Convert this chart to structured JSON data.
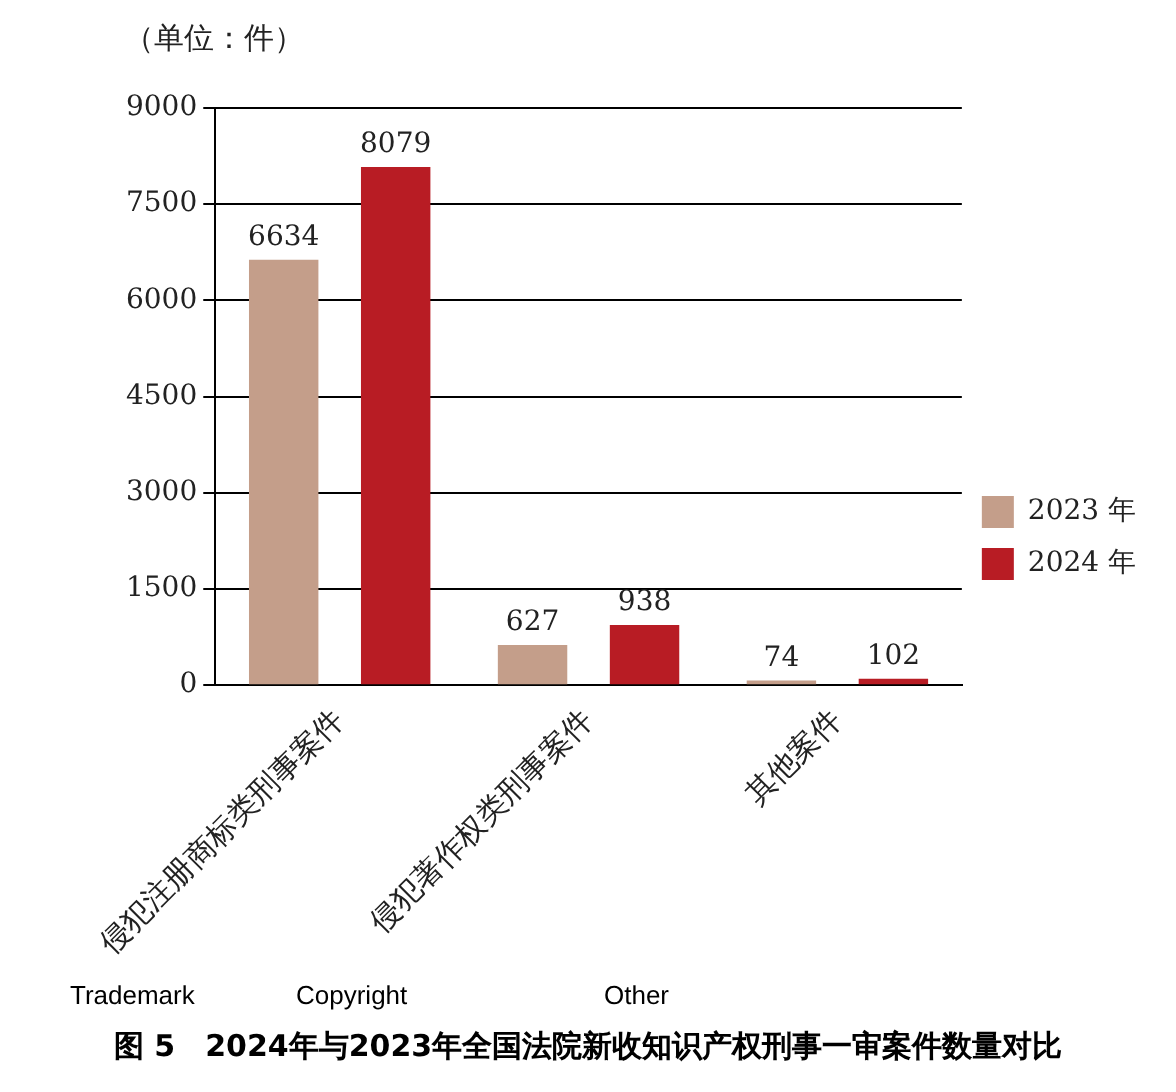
{
  "chart_data": {
    "type": "bar",
    "title": "图 5　2024年与2023年全国法院新收知识产权刑事一审案件数量对比",
    "ylabel": "（单位：件）",
    "categories": [
      "侵犯注册商标类刑事案件",
      "侵犯著作权类刑事案件",
      "其他案件"
    ],
    "series": [
      {
        "name": "2023 年",
        "color": "#c49e8a",
        "values": [
          6634,
          627,
          74
        ]
      },
      {
        "name": "2024 年",
        "color": "#b81c24",
        "values": [
          8079,
          938,
          102
        ]
      }
    ],
    "ylim": [
      0,
      9000
    ],
    "yticks": [
      0,
      1500,
      3000,
      4500,
      6000,
      7500,
      9000
    ],
    "grid": "y",
    "legend": "right",
    "data_labels": true,
    "annotations": [
      "Trademark",
      "Copyright",
      "Other"
    ]
  }
}
